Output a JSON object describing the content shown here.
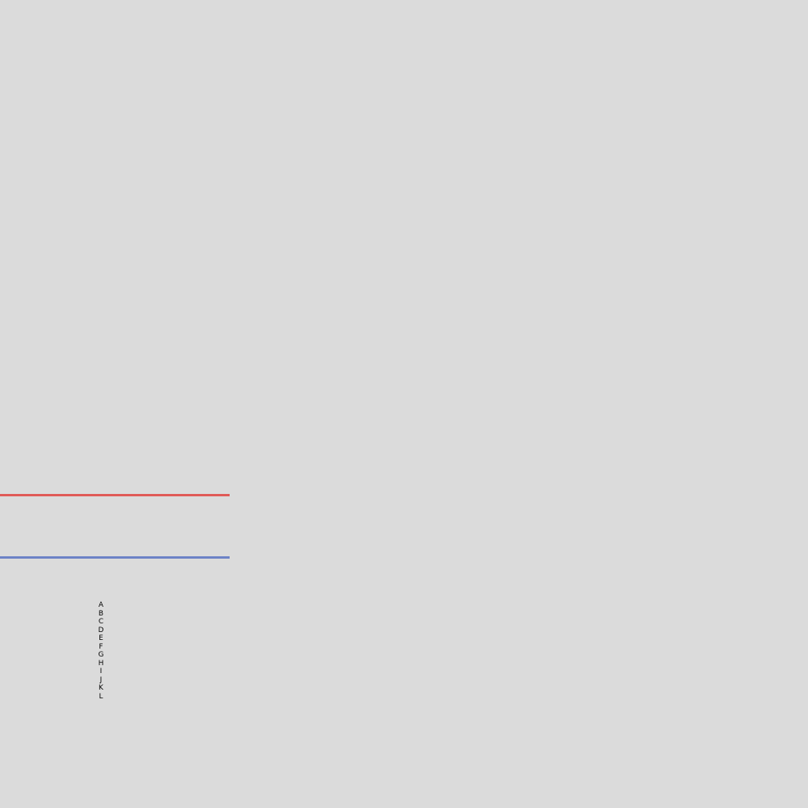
{
  "background_color": "#dbdbdb",
  "lines": [
    {
      "name": "red-line",
      "color": "#e05a57"
    },
    {
      "name": "blue-line",
      "color": "#6c82c6"
    }
  ],
  "letters": [
    "A",
    "B",
    "C",
    "D",
    "E",
    "F",
    "G",
    "H",
    "I",
    "J",
    "K",
    "L"
  ]
}
